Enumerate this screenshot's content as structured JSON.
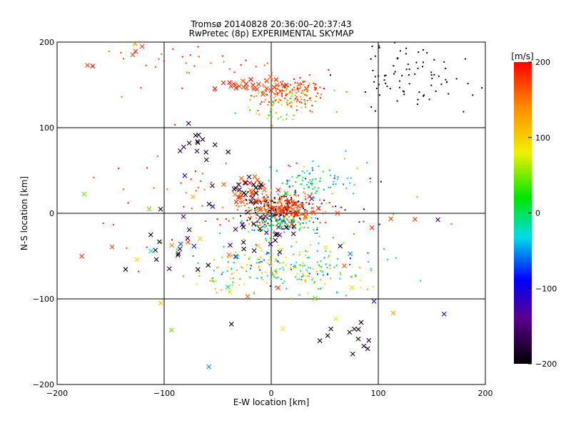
{
  "chart_data": {
    "type": "scatter",
    "title": "Tromsø 20140828 20:36:00–20:37:43",
    "subtitle": "RwPretec (8p) EXPERIMENTAL SKYMAP",
    "xlabel": "E-W location [km]",
    "ylabel": "N-S location [km]",
    "xlim": [
      -200,
      200
    ],
    "ylim": [
      -200,
      200
    ],
    "xticks": [
      "−200",
      "−100",
      "0",
      "100",
      "200"
    ],
    "yticks": [
      "−200",
      "−100",
      "0",
      "100",
      "200"
    ],
    "grid": true,
    "colorbar": {
      "label": "[m/s]",
      "range": [
        -200,
        200
      ],
      "ticks": [
        "200",
        "100",
        "0",
        "−100",
        "−200"
      ]
    },
    "series": [
      {
        "marker": "dot",
        "clusters": [
          {
            "cx": 20,
            "cy": 140,
            "sx": 18,
            "sy": 10,
            "n": 150,
            "vmin": 130,
            "vmax": 200
          },
          {
            "cx": 10,
            "cy": 125,
            "sx": 15,
            "sy": 12,
            "n": 50,
            "vmin": 0,
            "vmax": 130
          },
          {
            "cx": 130,
            "cy": 160,
            "sx": 30,
            "sy": 22,
            "n": 80,
            "vmin": -200,
            "vmax": -190
          },
          {
            "cx": -60,
            "cy": 175,
            "sx": 45,
            "sy": 15,
            "n": 40,
            "vmin": 150,
            "vmax": 200
          },
          {
            "cx": 5,
            "cy": 5,
            "sx": 20,
            "sy": 10,
            "n": 240,
            "vmin": 120,
            "vmax": 200
          },
          {
            "cx": 5,
            "cy": 5,
            "sx": 15,
            "sy": 10,
            "n": 120,
            "vmin": -200,
            "vmax": -150
          },
          {
            "cx": 35,
            "cy": 35,
            "sx": 20,
            "sy": 12,
            "n": 80,
            "vmin": -60,
            "vmax": 40
          },
          {
            "cx": 10,
            "cy": -10,
            "sx": 15,
            "sy": 8,
            "n": 130,
            "vmin": -80,
            "vmax": 60
          },
          {
            "cx": 10,
            "cy": -65,
            "sx": 40,
            "sy": 15,
            "n": 230,
            "vmin": -70,
            "vmax": 140
          },
          {
            "cx": -90,
            "cy": 5,
            "sx": 40,
            "sy": 40,
            "n": 40,
            "vmin": 150,
            "vmax": 200
          },
          {
            "cx": 60,
            "cy": 0,
            "sx": 40,
            "sy": 40,
            "n": 40,
            "vmin": -200,
            "vmax": 200
          }
        ]
      },
      {
        "marker": "x",
        "clusters": [
          {
            "cx": -20,
            "cy": 150,
            "sx": 25,
            "sy": 6,
            "n": 30,
            "vmin": 160,
            "vmax": 200
          },
          {
            "cx": -150,
            "cy": 185,
            "sx": 15,
            "sy": 10,
            "n": 6,
            "vmin": 120,
            "vmax": 200
          },
          {
            "cx": -70,
            "cy": 75,
            "sx": 15,
            "sy": 18,
            "n": 15,
            "vmin": -200,
            "vmax": -170
          },
          {
            "cx": -20,
            "cy": 25,
            "sx": 15,
            "sy": 10,
            "n": 25,
            "vmin": 150,
            "vmax": 200
          },
          {
            "cx": -20,
            "cy": 25,
            "sx": 10,
            "sy": 8,
            "n": 15,
            "vmin": -200,
            "vmax": -170
          },
          {
            "cx": 20,
            "cy": 5,
            "sx": 12,
            "sy": 5,
            "n": 35,
            "vmin": 160,
            "vmax": 200
          },
          {
            "cx": 0,
            "cy": -20,
            "sx": 15,
            "sy": 20,
            "n": 25,
            "vmin": -200,
            "vmax": -150
          },
          {
            "cx": -100,
            "cy": -30,
            "sx": 20,
            "sy": 20,
            "n": 15,
            "vmin": -200,
            "vmax": -170
          },
          {
            "cx": 80,
            "cy": -145,
            "sx": 12,
            "sy": 10,
            "n": 12,
            "vmin": -200,
            "vmax": -180
          },
          {
            "cx": 0,
            "cy": -50,
            "sx": 80,
            "sy": 50,
            "n": 45,
            "vmin": -200,
            "vmax": 200
          }
        ]
      }
    ]
  }
}
